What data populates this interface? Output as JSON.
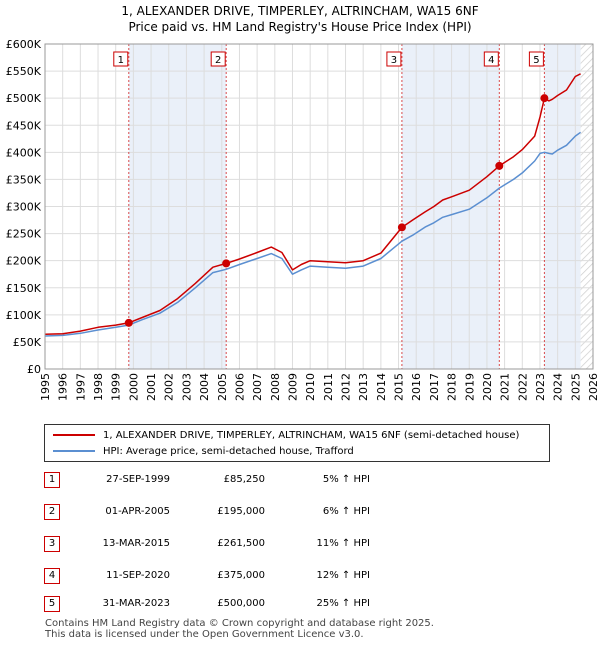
{
  "header": {
    "title_line1": "1, ALEXANDER DRIVE, TIMPERLEY, ALTRINCHAM, WA15 6NF",
    "title_line2": "Price paid vs. HM Land Registry's House Price Index (HPI)"
  },
  "chart_data": {
    "type": "line",
    "xlim": [
      1995,
      2026
    ],
    "ylim": [
      0,
      600000
    ],
    "x_ticks": [
      1995,
      1996,
      1997,
      1998,
      1999,
      2000,
      2001,
      2002,
      2003,
      2004,
      2005,
      2006,
      2007,
      2008,
      2009,
      2010,
      2011,
      2012,
      2013,
      2014,
      2015,
      2016,
      2017,
      2018,
      2019,
      2020,
      2021,
      2022,
      2023,
      2024,
      2025,
      2026
    ],
    "y_ticks": [
      0,
      50000,
      100000,
      150000,
      200000,
      250000,
      300000,
      350000,
      400000,
      450000,
      500000,
      550000,
      600000
    ],
    "y_tick_labels": [
      "£0",
      "£50K",
      "£100K",
      "£150K",
      "£200K",
      "£250K",
      "£300K",
      "£350K",
      "£400K",
      "£450K",
      "£500K",
      "£550K",
      "£600K"
    ],
    "grid": true,
    "legend_position": "below",
    "series": [
      {
        "name": "1, ALEXANDER DRIVE, TIMPERLEY, ALTRINCHAM, WA15 6NF (semi-detached house)",
        "color": "#cc0000",
        "x": [
          1995.0,
          1996.0,
          1997.0,
          1998.0,
          1999.0,
          1999.74,
          2000.5,
          2001.5,
          2002.5,
          2003.5,
          2004.5,
          2005.25,
          2006.0,
          2007.0,
          2007.8,
          2008.4,
          2009.0,
          2009.5,
          2010.0,
          2011.0,
          2012.0,
          2013.0,
          2014.0,
          2015.19,
          2015.8,
          2016.5,
          2017.0,
          2017.5,
          2018.0,
          2019.0,
          2020.0,
          2020.7,
          2021.5,
          2022.0,
          2022.7,
          2023.0,
          2023.25,
          2023.5,
          2023.7,
          2024.0,
          2024.5,
          2025.0,
          2025.3
        ],
        "values": [
          64000,
          65000,
          70000,
          77000,
          81000,
          85250,
          95000,
          108000,
          130000,
          158000,
          188000,
          195000,
          203000,
          215000,
          225000,
          215000,
          183000,
          193000,
          200000,
          198000,
          196000,
          200000,
          214000,
          261500,
          275000,
          290000,
          300000,
          312000,
          318000,
          330000,
          355000,
          375000,
          392000,
          405000,
          430000,
          465000,
          500000,
          495000,
          498000,
          505000,
          515000,
          540000,
          545000
        ]
      },
      {
        "name": "HPI: Average price, semi-detached house, Trafford",
        "color": "#5b8fd1",
        "x": [
          1995.0,
          1996.0,
          1997.0,
          1998.0,
          1999.0,
          1999.74,
          2000.5,
          2001.5,
          2002.5,
          2003.5,
          2004.5,
          2005.25,
          2006.0,
          2007.0,
          2007.8,
          2008.4,
          2009.0,
          2009.5,
          2010.0,
          2011.0,
          2012.0,
          2013.0,
          2014.0,
          2015.19,
          2015.8,
          2016.5,
          2017.0,
          2017.5,
          2018.0,
          2019.0,
          2020.0,
          2020.7,
          2021.5,
          2022.0,
          2022.7,
          2023.0,
          2023.25,
          2023.5,
          2023.7,
          2024.0,
          2024.5,
          2025.0,
          2025.3
        ],
        "values": [
          61000,
          62000,
          66000,
          72000,
          77000,
          81000,
          91000,
          103000,
          123000,
          150000,
          178000,
          184000,
          193000,
          204000,
          213000,
          204000,
          175000,
          183000,
          190000,
          188000,
          186000,
          190000,
          204000,
          236000,
          247000,
          262000,
          270000,
          280000,
          285000,
          295000,
          316000,
          334000,
          350000,
          362000,
          384000,
          398000,
          400000,
          398000,
          397000,
          404000,
          413000,
          430000,
          437000
        ]
      }
    ],
    "sales": [
      {
        "label": "1",
        "x": 1999.74,
        "value": 85250
      },
      {
        "label": "2",
        "x": 2005.25,
        "value": 195000
      },
      {
        "label": "3",
        "x": 2015.19,
        "value": 261500
      },
      {
        "label": "4",
        "x": 2020.7,
        "value": 375000
      },
      {
        "label": "5",
        "x": 2023.25,
        "value": 500000
      }
    ],
    "shaded_ranges": [
      [
        1999.74,
        2005.25
      ],
      [
        2015.19,
        2020.7
      ],
      [
        2023.25,
        2025.3
      ]
    ],
    "future_hatch_from": 2025.3
  },
  "legend": {
    "property": "1, ALEXANDER DRIVE, TIMPERLEY, ALTRINCHAM, WA15 6NF (semi-detached house)",
    "hpi": "HPI: Average price, semi-detached house, Trafford",
    "property_color": "#cc0000",
    "hpi_color": "#5b8fd1"
  },
  "sales_table": [
    {
      "num": "1",
      "date": "27-SEP-1999",
      "price": "£85,250",
      "hpi": "5% ↑ HPI"
    },
    {
      "num": "2",
      "date": "01-APR-2005",
      "price": "£195,000",
      "hpi": "6% ↑ HPI"
    },
    {
      "num": "3",
      "date": "13-MAR-2015",
      "price": "£261,500",
      "hpi": "11% ↑ HPI"
    },
    {
      "num": "4",
      "date": "11-SEP-2020",
      "price": "£375,000",
      "hpi": "12% ↑ HPI"
    },
    {
      "num": "5",
      "date": "31-MAR-2023",
      "price": "£500,000",
      "hpi": "25% ↑ HPI"
    }
  ],
  "footer": {
    "line1": "Contains HM Land Registry data © Crown copyright and database right 2025.",
    "line2": "This data is licensed under the Open Government Licence v3.0."
  }
}
